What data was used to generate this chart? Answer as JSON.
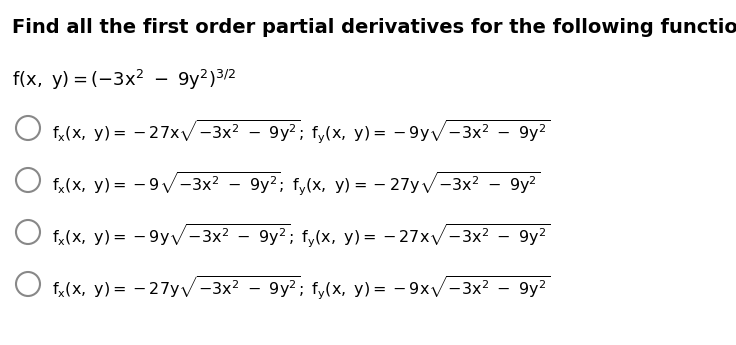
{
  "title": "Find all the first order partial derivatives for the following function.",
  "background_color": "#ffffff",
  "text_color": "#000000",
  "title_fontsize": 15,
  "body_fontsize": 12,
  "func_line": "f(x, y) = (-3x² - 9y²)³/2",
  "option_texts_left": [
    "fₓ(x, y) = -27x√-3x² - 9y²; fᵧ(x, y) = -9y√-3x² - 9y²",
    "fₓ(x, y) = -9√-3x² - 9y²; fᵧ(x, y) = -27y√-3x² - 9y²",
    "fₓ(x, y) = -9y√-3x² - 9y²; fᵧ(x, y) = -27x√-3x² - 9y²",
    "fₓ(x, y) = -27y√-3x² - 9y²; fᵧ(x, y) = -9x√-3x² - 9y²"
  ]
}
